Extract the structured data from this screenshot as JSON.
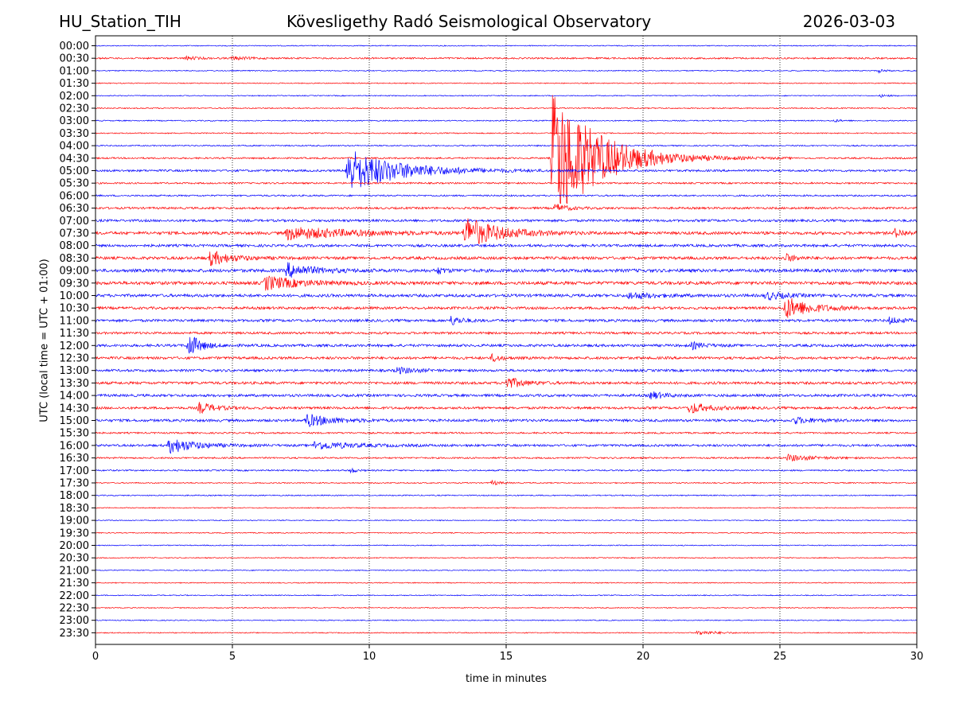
{
  "header": {
    "station": "HU_Station_TIH",
    "observatory": "Kövesligethy Radó Seismological Observatory",
    "date": "2026-03-03"
  },
  "colors": {
    "even": "#0000ff",
    "odd": "#ff0000",
    "grid": "#000000"
  },
  "chart_data": {
    "type": "line",
    "title": "Kövesligethy Radó Seismological Observatory",
    "xlabel": "time in minutes",
    "ylabel": "UTC (local time = UTC + 01:00)",
    "xlim": [
      0,
      30
    ],
    "x_ticks": [
      0,
      5,
      10,
      15,
      20,
      25,
      30
    ],
    "grid": "vertical dotted at 5-minute ticks",
    "rows": [
      "00:00",
      "00:30",
      "01:00",
      "01:30",
      "02:00",
      "02:30",
      "03:00",
      "03:30",
      "04:00",
      "04:30",
      "05:00",
      "05:30",
      "06:00",
      "06:30",
      "07:00",
      "07:30",
      "08:00",
      "08:30",
      "09:00",
      "09:30",
      "10:00",
      "10:30",
      "11:00",
      "11:30",
      "12:00",
      "12:30",
      "13:00",
      "13:30",
      "14:00",
      "14:30",
      "15:00",
      "15:30",
      "16:00",
      "16:30",
      "17:00",
      "17:30",
      "18:00",
      "18:30",
      "19:00",
      "19:30",
      "20:00",
      "20:30",
      "21:00",
      "21:30",
      "22:00",
      "22:30",
      "23:00",
      "23:30"
    ],
    "noise_level": [
      0.6,
      1.0,
      0.6,
      0.6,
      0.6,
      0.7,
      0.7,
      0.7,
      0.8,
      1.0,
      1.3,
      1.0,
      1.0,
      1.3,
      1.5,
      1.8,
      1.6,
      1.8,
      2.0,
      2.0,
      1.8,
      1.6,
      1.6,
      1.4,
      1.6,
      1.6,
      1.5,
      1.6,
      1.6,
      1.5,
      1.6,
      1.0,
      1.4,
      1.0,
      0.9,
      0.7,
      0.7,
      0.6,
      0.6,
      0.6,
      0.6,
      0.6,
      0.6,
      0.6,
      0.6,
      0.6,
      0.6,
      0.6
    ],
    "events": [
      {
        "row": "00:30",
        "minute": 3.3,
        "amplitude": 2,
        "duration": 1.0
      },
      {
        "row": "00:30",
        "minute": 5.0,
        "amplitude": 2,
        "duration": 1.2
      },
      {
        "row": "01:00",
        "minute": 28.6,
        "amplitude": 2,
        "duration": 0.6
      },
      {
        "row": "02:00",
        "minute": 28.7,
        "amplitude": 1.5,
        "duration": 0.6
      },
      {
        "row": "03:00",
        "minute": 27.0,
        "amplitude": 1.5,
        "duration": 0.6
      },
      {
        "row": "04:30",
        "minute": 16.7,
        "amplitude": 90,
        "duration": 3.5
      },
      {
        "row": "05:00",
        "minute": 9.2,
        "amplitude": 28,
        "duration": 4.0
      },
      {
        "row": "06:30",
        "minute": 16.8,
        "amplitude": 5,
        "duration": 1.0
      },
      {
        "row": "07:30",
        "minute": 7.0,
        "amplitude": 8,
        "duration": 5.0
      },
      {
        "row": "07:30",
        "minute": 13.5,
        "amplitude": 20,
        "duration": 2.5
      },
      {
        "row": "07:30",
        "minute": 29.2,
        "amplitude": 5,
        "duration": 0.8
      },
      {
        "row": "08:30",
        "minute": 4.2,
        "amplitude": 9,
        "duration": 1.6
      },
      {
        "row": "08:30",
        "minute": 25.2,
        "amplitude": 5,
        "duration": 0.8
      },
      {
        "row": "09:00",
        "minute": 7.0,
        "amplitude": 9,
        "duration": 2.0
      },
      {
        "row": "09:00",
        "minute": 12.5,
        "amplitude": 4,
        "duration": 0.6
      },
      {
        "row": "09:30",
        "minute": 6.2,
        "amplitude": 9,
        "duration": 2.5
      },
      {
        "row": "10:00",
        "minute": 19.5,
        "amplitude": 4,
        "duration": 2.0
      },
      {
        "row": "10:00",
        "minute": 24.5,
        "amplitude": 5,
        "duration": 1.5
      },
      {
        "row": "10:30",
        "minute": 25.2,
        "amplitude": 14,
        "duration": 2.0
      },
      {
        "row": "11:00",
        "minute": 13.0,
        "amplitude": 6,
        "duration": 0.8
      },
      {
        "row": "11:00",
        "minute": 29.0,
        "amplitude": 4,
        "duration": 1.0
      },
      {
        "row": "12:00",
        "minute": 3.4,
        "amplitude": 16,
        "duration": 0.9
      },
      {
        "row": "12:00",
        "minute": 21.8,
        "amplitude": 4,
        "duration": 1.0
      },
      {
        "row": "12:30",
        "minute": 14.5,
        "amplitude": 5,
        "duration": 0.6
      },
      {
        "row": "13:00",
        "minute": 11.0,
        "amplitude": 4,
        "duration": 1.5
      },
      {
        "row": "13:30",
        "minute": 15.0,
        "amplitude": 8,
        "duration": 1.2
      },
      {
        "row": "14:00",
        "minute": 20.3,
        "amplitude": 5,
        "duration": 1.0
      },
      {
        "row": "14:30",
        "minute": 3.8,
        "amplitude": 7,
        "duration": 1.2
      },
      {
        "row": "14:30",
        "minute": 21.7,
        "amplitude": 7,
        "duration": 1.5
      },
      {
        "row": "15:00",
        "minute": 7.7,
        "amplitude": 8,
        "duration": 2.0
      },
      {
        "row": "15:00",
        "minute": 25.5,
        "amplitude": 4,
        "duration": 1.5
      },
      {
        "row": "16:00",
        "minute": 2.7,
        "amplitude": 10,
        "duration": 2.0
      },
      {
        "row": "16:00",
        "minute": 8.0,
        "amplitude": 5,
        "duration": 3.0
      },
      {
        "row": "16:30",
        "minute": 25.3,
        "amplitude": 4,
        "duration": 2.0
      },
      {
        "row": "17:00",
        "minute": 9.3,
        "amplitude": 4,
        "duration": 0.4
      },
      {
        "row": "17:30",
        "minute": 14.5,
        "amplitude": 3,
        "duration": 0.6
      },
      {
        "row": "23:30",
        "minute": 22.0,
        "amplitude": 3,
        "duration": 1.5
      }
    ]
  }
}
